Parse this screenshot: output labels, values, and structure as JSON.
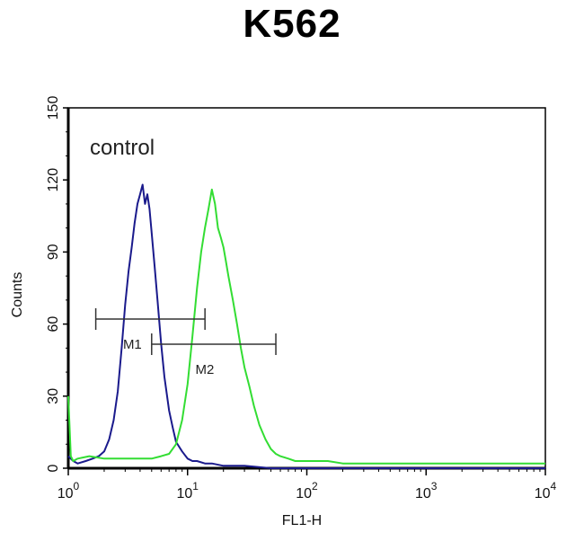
{
  "title": "K562",
  "chart_data": {
    "type": "line",
    "title": "K562",
    "xlabel": "FL1-H",
    "ylabel": "Counts",
    "xscale": "log",
    "xlim": [
      1,
      10000
    ],
    "ylim": [
      0,
      150
    ],
    "x_ticks": [
      {
        "base": "10",
        "exp": "0"
      },
      {
        "base": "10",
        "exp": "1"
      },
      {
        "base": "10",
        "exp": "2"
      },
      {
        "base": "10",
        "exp": "3"
      },
      {
        "base": "10",
        "exp": "4"
      }
    ],
    "y_ticks": [
      "0",
      "30",
      "60",
      "90",
      "120",
      "150"
    ],
    "annotation": "control",
    "colors": {
      "control": "#1a1a8c",
      "sample": "#33dd33",
      "axis": "#000000",
      "gate": "#333333"
    },
    "series": [
      {
        "key": "control",
        "x": [
          1.0,
          1.1,
          1.2,
          1.4,
          1.6,
          1.8,
          2.0,
          2.2,
          2.4,
          2.6,
          2.8,
          3.0,
          3.2,
          3.4,
          3.6,
          3.8,
          4.0,
          4.2,
          4.4,
          4.6,
          4.8,
          5.0,
          5.3,
          5.6,
          6.0,
          6.4,
          7.0,
          7.5,
          8.0,
          9.0,
          10,
          11,
          12,
          14,
          16,
          20,
          30,
          50,
          100,
          1000,
          10000
        ],
        "y": [
          5,
          3,
          2,
          3,
          4,
          5,
          7,
          12,
          20,
          32,
          50,
          68,
          82,
          92,
          102,
          110,
          114,
          118,
          110,
          114,
          108,
          98,
          84,
          70,
          52,
          38,
          24,
          17,
          11,
          7,
          4,
          3,
          3,
          2,
          2,
          1,
          1,
          0,
          0,
          0,
          0
        ]
      },
      {
        "key": "sample",
        "x": [
          1.0,
          1.05,
          1.1,
          1.2,
          1.5,
          2.0,
          3.0,
          4.0,
          5.0,
          6.0,
          7.0,
          8.0,
          9.0,
          10,
          11,
          12,
          13,
          14,
          15,
          16,
          17,
          18,
          19,
          20,
          21,
          22,
          24,
          26,
          28,
          30,
          33,
          36,
          40,
          45,
          50,
          55,
          60,
          70,
          80,
          100,
          150,
          200,
          500,
          1000,
          2000,
          5000,
          10000
        ],
        "y": [
          30,
          5,
          3,
          4,
          5,
          4,
          4,
          4,
          4,
          5,
          6,
          10,
          20,
          35,
          55,
          75,
          90,
          100,
          108,
          116,
          110,
          100,
          96,
          92,
          86,
          80,
          70,
          60,
          50,
          42,
          34,
          26,
          18,
          12,
          8,
          6,
          5,
          4,
          3,
          3,
          3,
          2,
          2,
          2,
          2,
          2,
          2
        ]
      }
    ],
    "gates": [
      {
        "label": "M1",
        "x_start": 1.7,
        "x_end": 14
      },
      {
        "label": "M2",
        "x_start": 5,
        "x_end": 55
      }
    ]
  }
}
